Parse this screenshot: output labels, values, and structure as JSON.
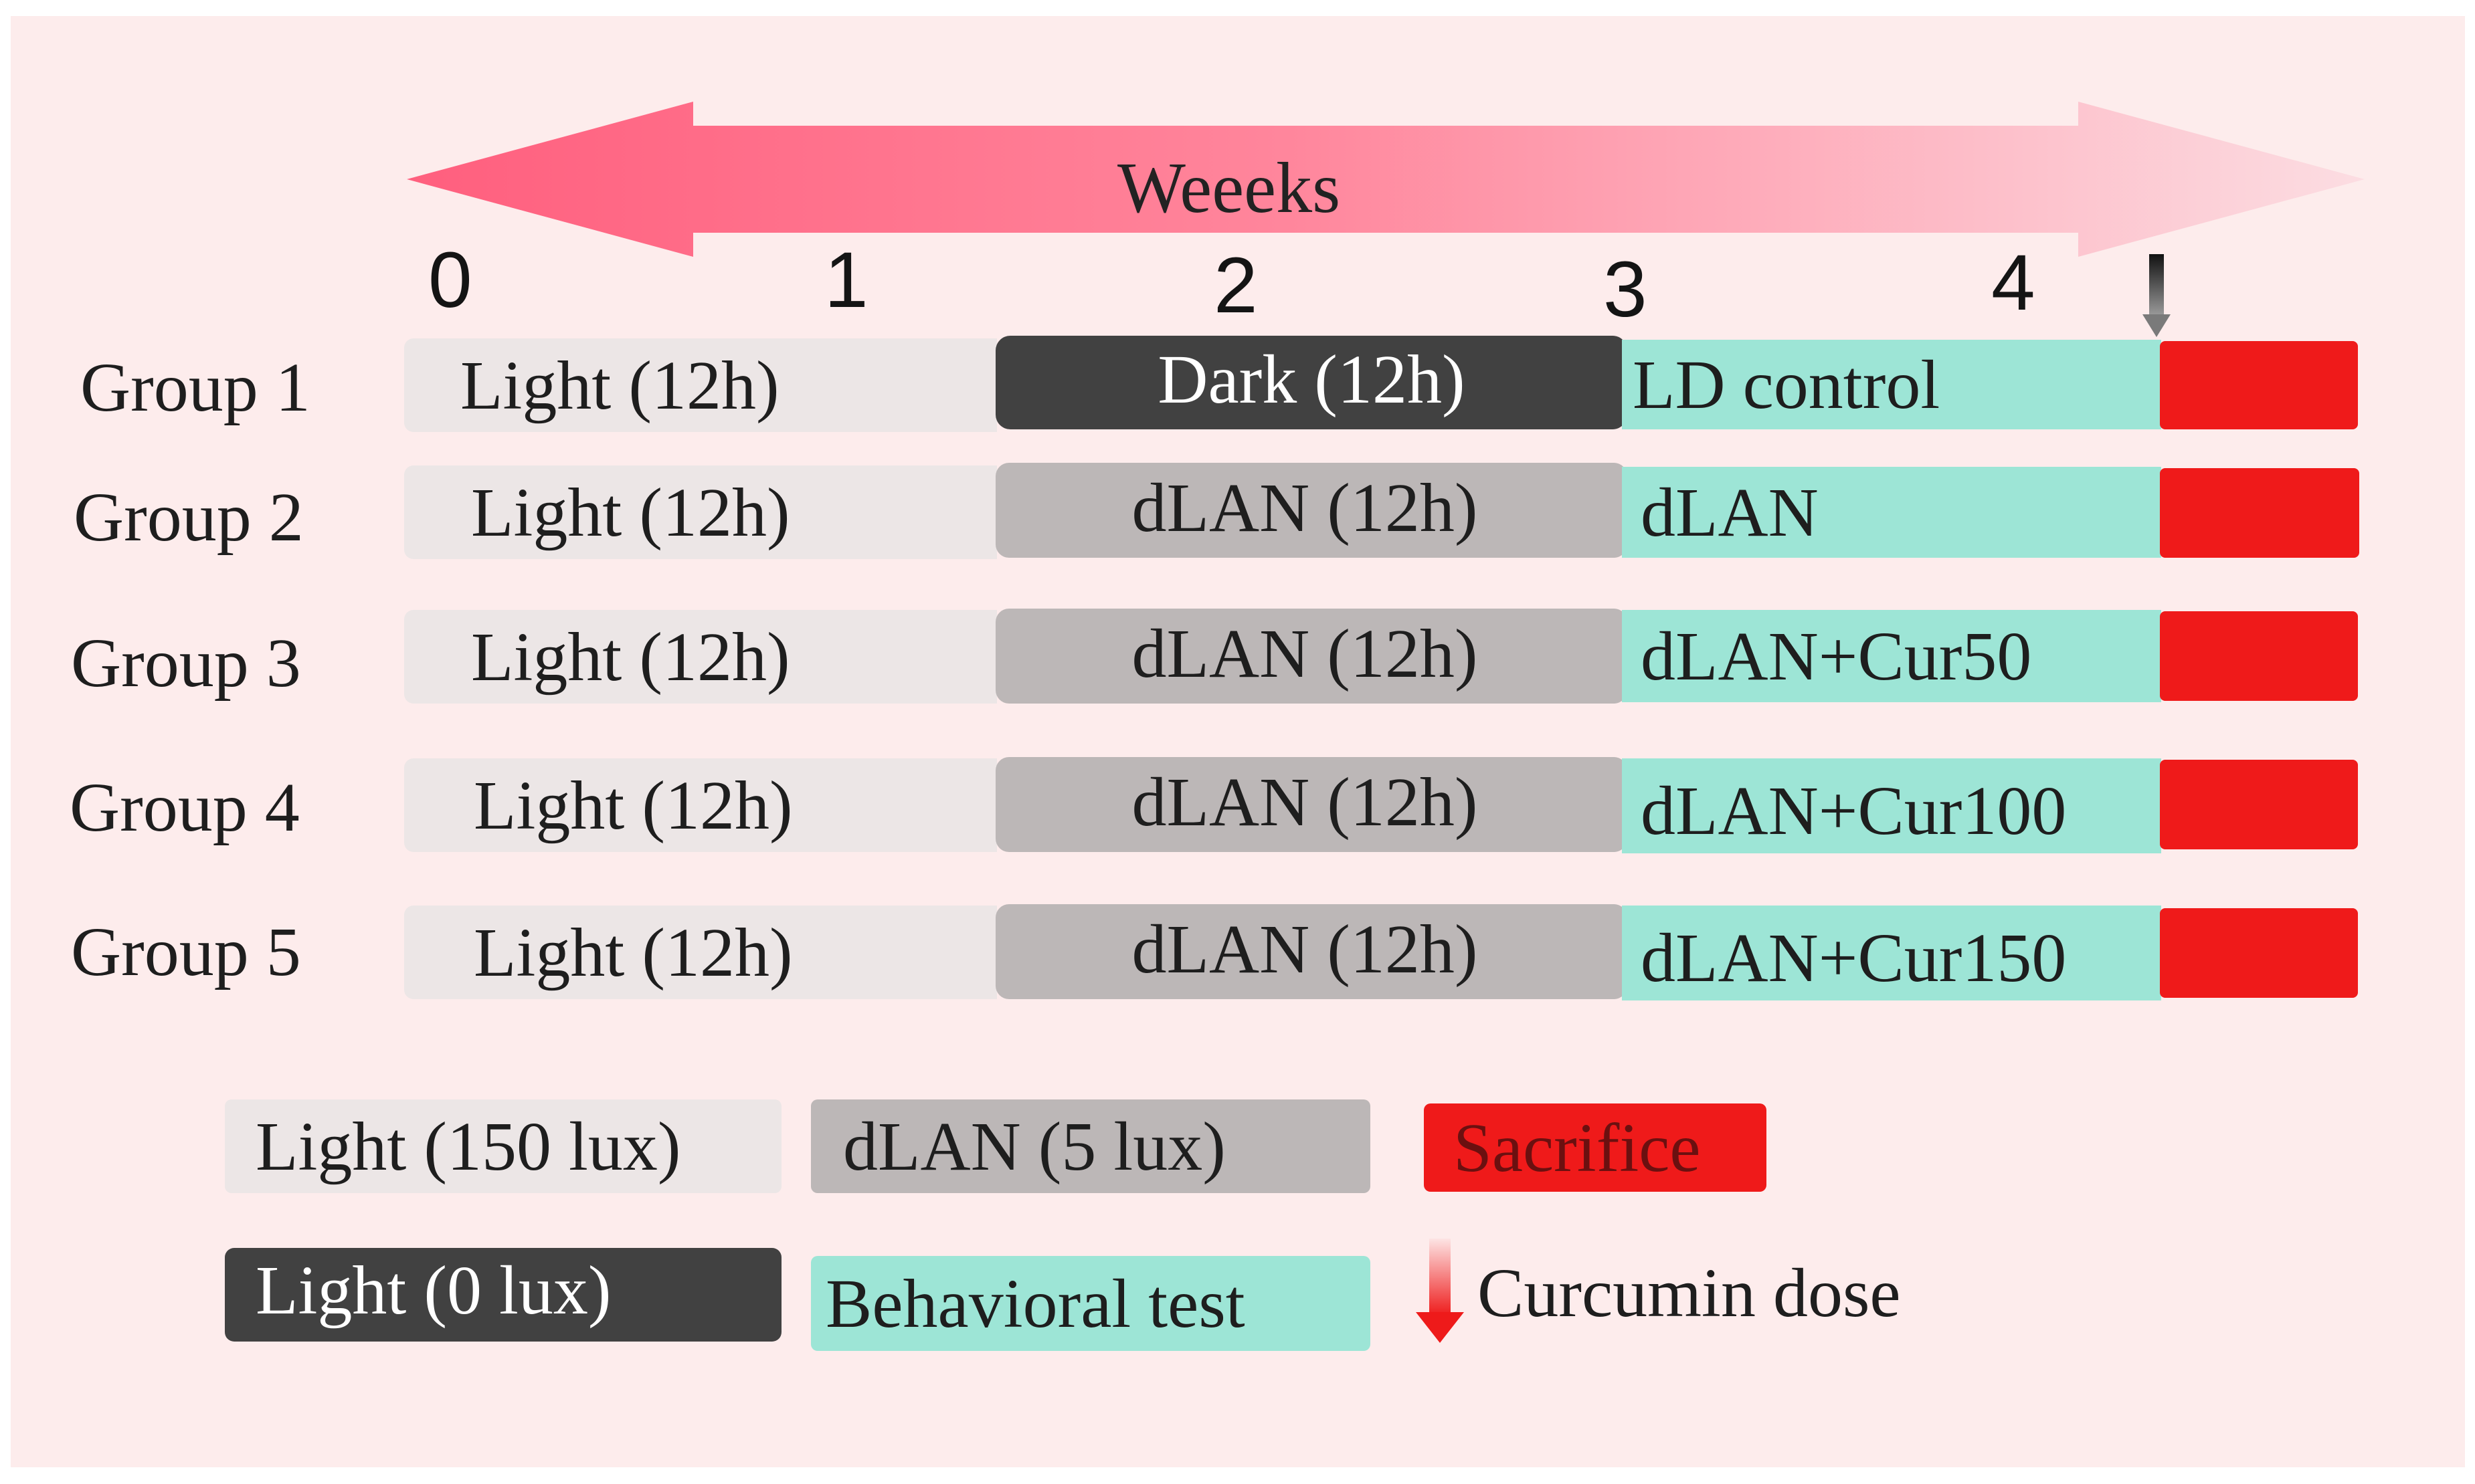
{
  "timeline": {
    "label": "Weeeks",
    "ticks": [
      "0",
      "1",
      "2",
      "3",
      "4"
    ],
    "arrow_colors": {
      "left": "#ff5f7e",
      "right": "#fcd7dd"
    }
  },
  "groups": [
    {
      "name": "Group 1",
      "phase1": "Light (12h)",
      "phase2": "Dark (12h)",
      "phase3": "LD control",
      "curcumin_dose": false
    },
    {
      "name": "Group 2",
      "phase1": "Light (12h)",
      "phase2": "dLAN (12h)",
      "phase3": "dLAN",
      "curcumin_dose": false
    },
    {
      "name": "Group 3",
      "phase1": "Light (12h)",
      "phase2": "dLAN (12h)",
      "phase3": "dLAN+Cur50",
      "curcumin_dose": true
    },
    {
      "name": "Group 4",
      "phase1": "Light (12h)",
      "phase2": "dLAN (12h)",
      "phase3": "dLAN+Cur100",
      "curcumin_dose": true
    },
    {
      "name": "Group 5",
      "phase1": "Light (12h)",
      "phase2": "dLAN (12h)",
      "phase3": "dLAN+Cur150",
      "curcumin_dose": true
    }
  ],
  "legend": {
    "light": "Light (150 lux)",
    "dlan": "dLAN (5 lux)",
    "sacrifice": "Sacrifice",
    "dark": "Light (0 lux)",
    "behavioral": "Behavioral test",
    "curcumin": "Curcumin dose"
  },
  "colors": {
    "background": "#fdecec",
    "light": "#ece6e6",
    "dlan": "#bcb7b7",
    "dark": "#414141",
    "behavioral": "#9de5d6",
    "sacrifice": "#ef1a1a"
  }
}
